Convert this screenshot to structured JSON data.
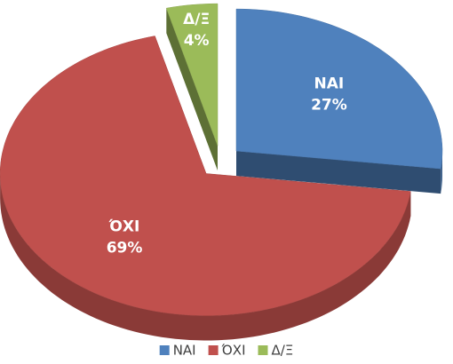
{
  "chart_data": {
    "type": "pie",
    "categories": [
      "ΝΑΙ",
      "ΌΧΙ",
      "Δ/Ξ"
    ],
    "values": [
      27,
      69,
      4
    ],
    "value_labels": [
      "27%",
      "69%",
      "4%"
    ],
    "colors": [
      "#4f81bd",
      "#c0504d",
      "#9bbb59"
    ],
    "legend": "bottom"
  }
}
